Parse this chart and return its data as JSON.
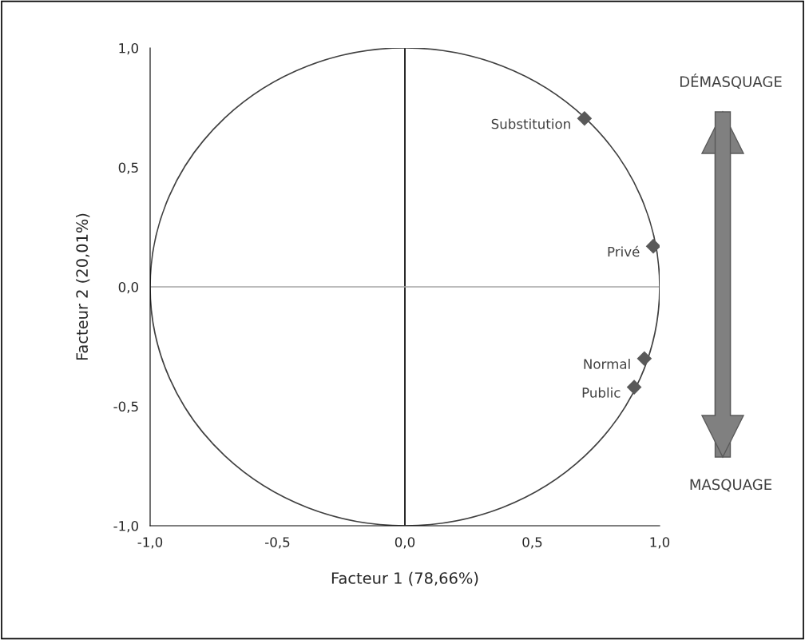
{
  "chart_data": {
    "type": "scatter",
    "xlabel": "Facteur 1 (78,66%)",
    "ylabel": "Facteur 2 (20,01%)",
    "x": [
      0.705,
      0.975,
      0.94,
      0.9
    ],
    "series": [
      {
        "color": "#595959",
        "values": [
          0.705,
          0.17,
          -0.3,
          -0.42
        ]
      }
    ],
    "marker": "diamond",
    "xlim": [
      -1,
      1
    ],
    "ylim": [
      -1,
      1
    ],
    "xticks": [
      {
        "value": -1,
        "label": "-1,0"
      },
      {
        "value": -0.5,
        "label": "-0,5"
      },
      {
        "value": 0,
        "label": "0,0"
      },
      {
        "value": 0.5,
        "label": "0,5"
      },
      {
        "value": 1,
        "label": "1,0"
      }
    ],
    "yticks": [
      {
        "value": -1,
        "label": "-1,0"
      },
      {
        "value": -0.5,
        "label": "-0,5"
      },
      {
        "value": 0,
        "label": "0,0"
      },
      {
        "value": 0.5,
        "label": "0,5"
      },
      {
        "value": 1,
        "label": "1,0"
      }
    ],
    "ref_lines": [
      {
        "axis": "x",
        "value": 0,
        "color": "#000000"
      },
      {
        "axis": "y",
        "value": 0,
        "color": "#a6a6a6"
      }
    ],
    "grid": false,
    "legend": false,
    "annotations": [
      {
        "text": "Substitution",
        "x": 0.705,
        "y": 0.705
      },
      {
        "text": "Privé",
        "x": 0.975,
        "y": 0.17
      },
      {
        "text": "Normal",
        "x": 0.94,
        "y": -0.3
      },
      {
        "text": "Public",
        "x": 0.9,
        "y": -0.42
      },
      "DÉMASQUAGE",
      "MASQUAGE"
    ]
  }
}
